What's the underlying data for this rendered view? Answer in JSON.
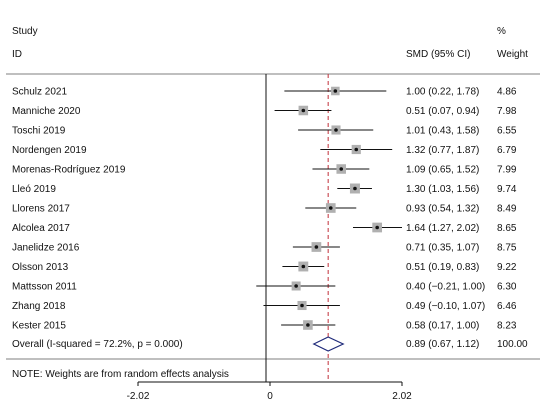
{
  "chart_data": {
    "type": "forest",
    "header": {
      "study_label": "Study",
      "id_label": "ID",
      "effect_label": "SMD (95% CI)",
      "percent_label": "%",
      "weight_label": "Weight"
    },
    "studies": [
      {
        "id": "Schulz 2021",
        "smd": 1.0,
        "lo": 0.22,
        "hi": 1.78,
        "ci_text": "1.00 (0.22, 1.78)",
        "weight": "4.86"
      },
      {
        "id": "Manniche 2020",
        "smd": 0.51,
        "lo": 0.07,
        "hi": 0.94,
        "ci_text": "0.51 (0.07, 0.94)",
        "weight": "7.98"
      },
      {
        "id": "Toschi 2019",
        "smd": 1.01,
        "lo": 0.43,
        "hi": 1.58,
        "ci_text": "1.01 (0.43, 1.58)",
        "weight": "6.55"
      },
      {
        "id": "Nordengen 2019",
        "smd": 1.32,
        "lo": 0.77,
        "hi": 1.87,
        "ci_text": "1.32 (0.77, 1.87)",
        "weight": "6.79"
      },
      {
        "id": "Morenas-Rodríguez 2019",
        "smd": 1.09,
        "lo": 0.65,
        "hi": 1.52,
        "ci_text": "1.09 (0.65, 1.52)",
        "weight": "7.99"
      },
      {
        "id": "Lleó 2019",
        "smd": 1.3,
        "lo": 1.03,
        "hi": 1.56,
        "ci_text": "1.30 (1.03, 1.56)",
        "weight": "9.74"
      },
      {
        "id": "Llorens 2017",
        "smd": 0.93,
        "lo": 0.54,
        "hi": 1.32,
        "ci_text": "0.93 (0.54, 1.32)",
        "weight": "8.49"
      },
      {
        "id": "Alcolea 2017",
        "smd": 1.64,
        "lo": 1.27,
        "hi": 2.02,
        "ci_text": "1.64 (1.27, 2.02)",
        "weight": "8.65"
      },
      {
        "id": "Janelidze 2016",
        "smd": 0.71,
        "lo": 0.35,
        "hi": 1.07,
        "ci_text": "0.71 (0.35, 1.07)",
        "weight": "8.75"
      },
      {
        "id": "Olsson 2013",
        "smd": 0.51,
        "lo": 0.19,
        "hi": 0.83,
        "ci_text": "0.51 (0.19, 0.83)",
        "weight": "9.22"
      },
      {
        "id": "Mattsson 2011",
        "smd": 0.4,
        "lo": -0.21,
        "hi": 1.0,
        "ci_text": "0.40 (−0.21, 1.00)",
        "weight": "6.30"
      },
      {
        "id": "Zhang 2018",
        "smd": 0.49,
        "lo": -0.1,
        "hi": 1.07,
        "ci_text": "0.49 (−0.10, 1.07)",
        "weight": "6.46"
      },
      {
        "id": "Kester 2015",
        "smd": 0.58,
        "lo": 0.17,
        "hi": 1.0,
        "ci_text": "0.58 (0.17, 1.00)",
        "weight": "8.23"
      }
    ],
    "overall": {
      "label": "Overall  (I-squared = 72.2%, p = 0.000)",
      "smd": 0.89,
      "lo": 0.67,
      "hi": 1.12,
      "ci_text": "0.89 (0.67, 1.12)",
      "weight": "100.00"
    },
    "note": "NOTE: Weights are from random effects analysis",
    "x_ticks": [
      {
        "value": -2.02,
        "label": "-2.02"
      },
      {
        "value": 0,
        "label": "0"
      },
      {
        "value": 2.02,
        "label": "2.02"
      }
    ],
    "xlim": [
      -2.02,
      2.02
    ],
    "null_line": 0,
    "colors": {
      "ci": "#111111",
      "marker_box": "#b0b0b0",
      "overall_diamond": "#1f2a7a",
      "overall_line": "#c0303a"
    }
  }
}
